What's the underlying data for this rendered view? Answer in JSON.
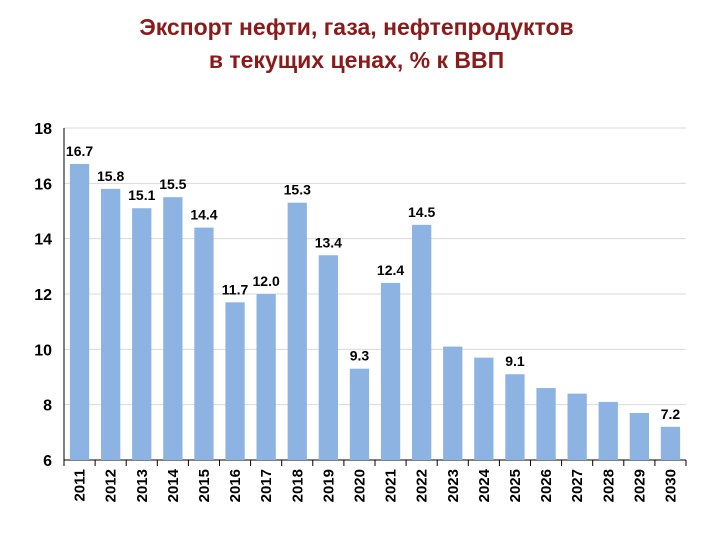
{
  "chart_data": {
    "type": "bar",
    "title_lines": [
      "Экспорт нефти, газа, нефтепродуктов",
      "в текущих ценах, % к ВВП"
    ],
    "xlabel": "",
    "ylabel": "",
    "ylim": [
      6,
      18
    ],
    "yticks": [
      "6",
      "8",
      "10",
      "12",
      "14",
      "16",
      "18"
    ],
    "grid": true,
    "legend": "none",
    "categories": [
      "2011",
      "2012",
      "2013",
      "2014",
      "2015",
      "2016",
      "2017",
      "2018",
      "2019",
      "2020",
      "2021",
      "2022",
      "2023",
      "2024",
      "2025",
      "2026",
      "2027",
      "2028",
      "2029",
      "2030"
    ],
    "values": [
      16.7,
      15.8,
      15.1,
      15.5,
      14.4,
      11.7,
      12.0,
      15.3,
      13.4,
      9.3,
      12.4,
      14.5,
      10.1,
      9.7,
      9.1,
      8.6,
      8.4,
      8.1,
      7.7,
      7.2
    ],
    "data_labels": [
      "16.7",
      "15.8",
      "15.1",
      "15.5",
      "14.4",
      "11.7",
      "12.0",
      "15.3",
      "13.4",
      "9.3",
      "12.4",
      "14.5",
      "",
      "",
      "9.1",
      "",
      "",
      "",
      "",
      "7.2"
    ],
    "bar_color": "#8db3e2",
    "title_color": "#8b1a1a"
  }
}
